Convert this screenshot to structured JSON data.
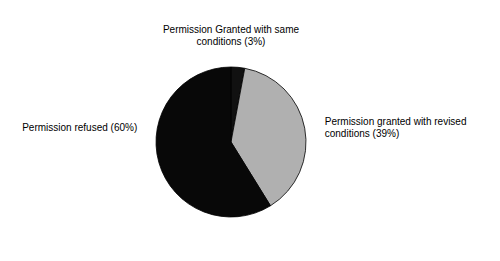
{
  "chart_data": {
    "type": "pie",
    "categories": [
      "Permission Granted with same\nconditions (3%)",
      "Permission granted with revised\nconditions (39%)",
      "Permission refused (60%)"
    ],
    "values": [
      3,
      39,
      60
    ],
    "colors": [
      "#111111",
      "#b0b0b0",
      "#080808"
    ]
  }
}
